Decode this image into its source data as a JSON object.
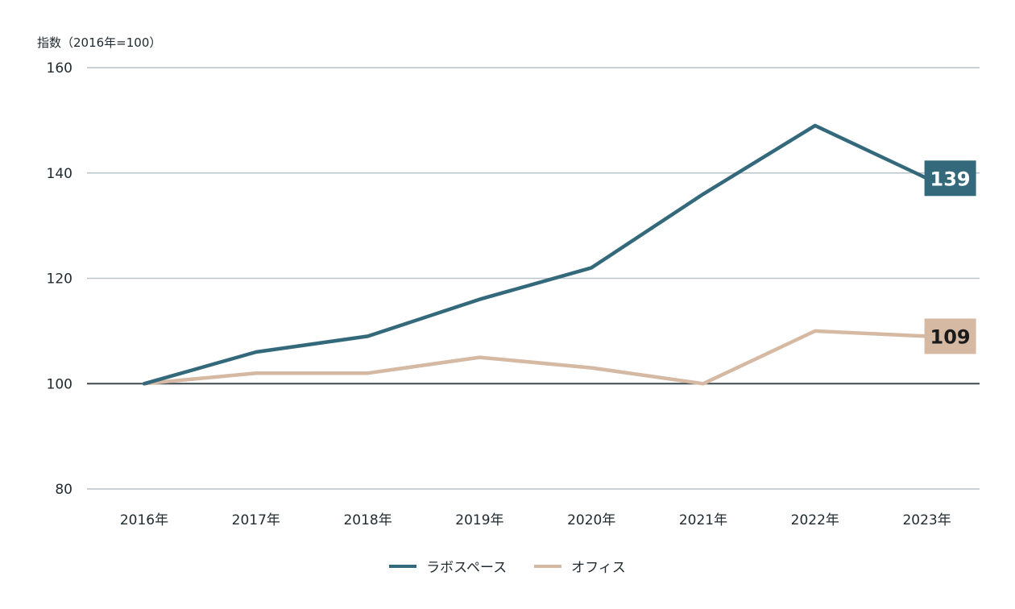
{
  "chart_data": {
    "type": "line",
    "ylabel": "指数（2016年=100）",
    "ylim": [
      80,
      160
    ],
    "yticks": [
      "160",
      "140",
      "120",
      "100",
      "80"
    ],
    "baseline": 100,
    "categories": [
      "2016年",
      "2017年",
      "2018年",
      "2019年",
      "2020年",
      "2021年",
      "2022年",
      "2023年"
    ],
    "series": [
      {
        "name": "ラボスペース",
        "color": "#33697b",
        "values": [
          100,
          106,
          109,
          116,
          122,
          136,
          149,
          139
        ],
        "end_label": "139"
      },
      {
        "name": "オフィス",
        "color": "#d6b9a3",
        "values": [
          100,
          102,
          102,
          105,
          103,
          100,
          110,
          109
        ],
        "end_label": "109"
      }
    ],
    "grid": true,
    "legend": "bottom"
  }
}
